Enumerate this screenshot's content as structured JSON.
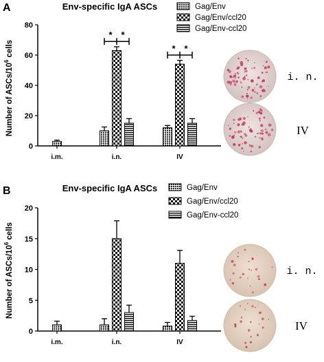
{
  "chart_data": [
    {
      "type": "bar",
      "panel_label": "A",
      "title": "Env-specific IgA ASCs",
      "xlabel": "",
      "ylabel": "Number of ASCs/10^6 cells",
      "ylabel_parts": {
        "main": "Number of ASCs/10",
        "sup": "6",
        "tail": " cells"
      },
      "ylim": [
        0,
        80
      ],
      "yticks": [
        "0",
        "20",
        "40",
        "60",
        "80"
      ],
      "ytick_values": [
        0,
        20,
        40,
        60,
        80
      ],
      "categories": [
        "i.m.",
        "i.n.",
        "IV"
      ],
      "series": [
        {
          "name": "Gag/Env",
          "pattern": "dots",
          "values": [
            3,
            10,
            12
          ],
          "errors": [
            0.8,
            2.5,
            1.5
          ]
        },
        {
          "name": "Gag/Env/ccl20",
          "pattern": "checker",
          "values": [
            null,
            63,
            54
          ],
          "errors": [
            null,
            2.5,
            2.5
          ]
        },
        {
          "name": "Gag/Env-ccl20",
          "pattern": "stripes",
          "values": [
            null,
            15,
            15
          ],
          "errors": [
            null,
            3,
            3
          ]
        }
      ],
      "annotations": [
        {
          "category": "i.n.",
          "bracket_y": 69,
          "stars": [
            "*",
            "*"
          ]
        },
        {
          "category": "IV",
          "bracket_y": 60,
          "stars": [
            "*",
            "*"
          ]
        }
      ],
      "grid": false,
      "legend_position": "top-right"
    },
    {
      "type": "bar",
      "panel_label": "B",
      "title": "Env-specific IgA ASCs",
      "xlabel": "",
      "ylabel": "Number of ASCs/10^6 cells",
      "ylabel_parts": {
        "main": "Number of ASCs/10",
        "sup": "6",
        "tail": " cells"
      },
      "ylim": [
        0,
        20
      ],
      "yticks": [
        "0",
        "5",
        "10",
        "15",
        "20"
      ],
      "ytick_values": [
        0,
        5,
        10,
        15,
        20
      ],
      "categories": [
        "i.m.",
        "i.n.",
        "IV"
      ],
      "series": [
        {
          "name": "Gag/Env",
          "pattern": "dots",
          "values": [
            1,
            1,
            0.8
          ],
          "errors": [
            0.6,
            1,
            0.6
          ]
        },
        {
          "name": "Gag/Env/ccl20",
          "pattern": "checker",
          "values": [
            null,
            15,
            11
          ],
          "errors": [
            null,
            2.9,
            2.1
          ]
        },
        {
          "name": "Gag/Env-ccl20",
          "pattern": "stripes",
          "values": [
            null,
            3,
            1.7
          ],
          "errors": [
            null,
            1.2,
            0.7
          ]
        }
      ],
      "annotations": [],
      "grid": false,
      "legend_position": "top-right"
    }
  ],
  "well_images": [
    {
      "panel": "A",
      "label": "i. n.",
      "dish_color": "#ddd0ce",
      "spot_color": "#c23a5a",
      "density": "high"
    },
    {
      "panel": "A",
      "label": "IV",
      "dish_color": "#ddd0ce",
      "spot_color": "#c23a5a",
      "density": "high"
    },
    {
      "panel": "B",
      "label": "i. n.",
      "dish_color": "#e3d2c2",
      "spot_color": "#c0455c",
      "density": "low"
    },
    {
      "panel": "B",
      "label": "IV",
      "dish_color": "#e3d2c2",
      "spot_color": "#c0455c",
      "density": "low"
    }
  ]
}
